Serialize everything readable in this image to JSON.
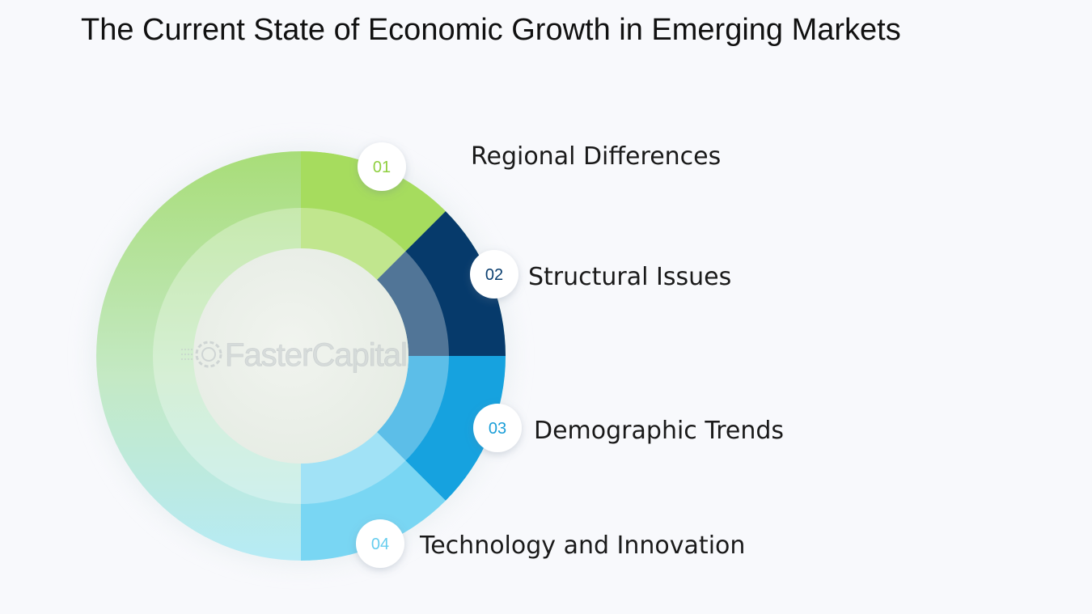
{
  "title": "The Current State of Economic Growth in Emerging Markets",
  "watermark": "FasterCapital",
  "items": [
    {
      "number": "01",
      "label": "Regional Differences",
      "color": "#a6dc5e",
      "number_color": "#8fcf3f",
      "icon": "circle-badge"
    },
    {
      "number": "02",
      "label": "Structural Issues",
      "color": "#063a6b",
      "number_color": "#0b3f70",
      "icon": "circle-badge"
    },
    {
      "number": "03",
      "label": "Demographic Trends",
      "color": "#16a2df",
      "number_color": "#1a9ed8",
      "icon": "circle-badge"
    },
    {
      "number": "04",
      "label": "Technology and Innovation",
      "color": "#79d6f3",
      "number_color": "#66cdee",
      "icon": "circle-badge"
    }
  ],
  "colors": {
    "background": "#f8f9fc",
    "ring_gradient_top": "#a8dd78",
    "ring_gradient_bottom": "#b9ebf4",
    "center_disc": "#eef1ec"
  }
}
